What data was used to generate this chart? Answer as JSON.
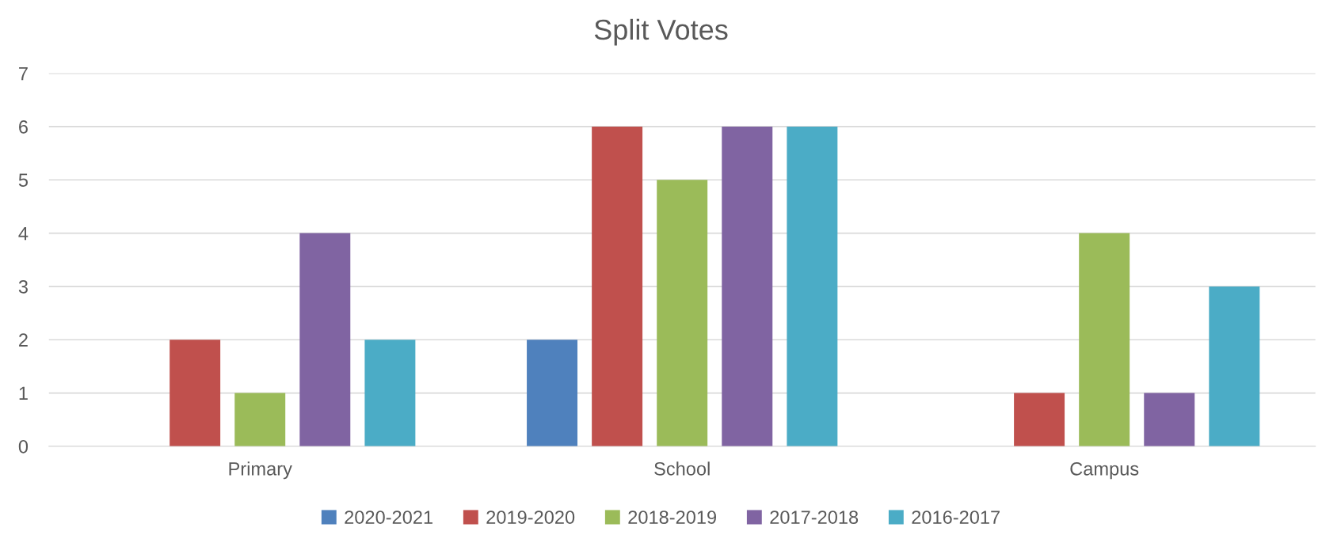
{
  "chart_data": {
    "type": "bar",
    "title": "Split Votes",
    "categories": [
      "Primary",
      "School",
      "Campus"
    ],
    "series": [
      {
        "name": "2020-2021",
        "color": "#4f81bd",
        "values": [
          0,
          2,
          0
        ]
      },
      {
        "name": "2019-2020",
        "color": "#c0504d",
        "values": [
          2,
          6,
          1
        ]
      },
      {
        "name": "2018-2019",
        "color": "#9bbb59",
        "values": [
          1,
          5,
          4
        ]
      },
      {
        "name": "2017-2018",
        "color": "#8064a2",
        "values": [
          4,
          6,
          1
        ]
      },
      {
        "name": "2016-2017",
        "color": "#4bacc6",
        "values": [
          2,
          6,
          3
        ]
      }
    ],
    "ylim": [
      0,
      7
    ],
    "yticks": [
      0,
      1,
      2,
      3,
      4,
      5,
      6,
      7
    ],
    "grid": "y",
    "legend": "bottom"
  }
}
